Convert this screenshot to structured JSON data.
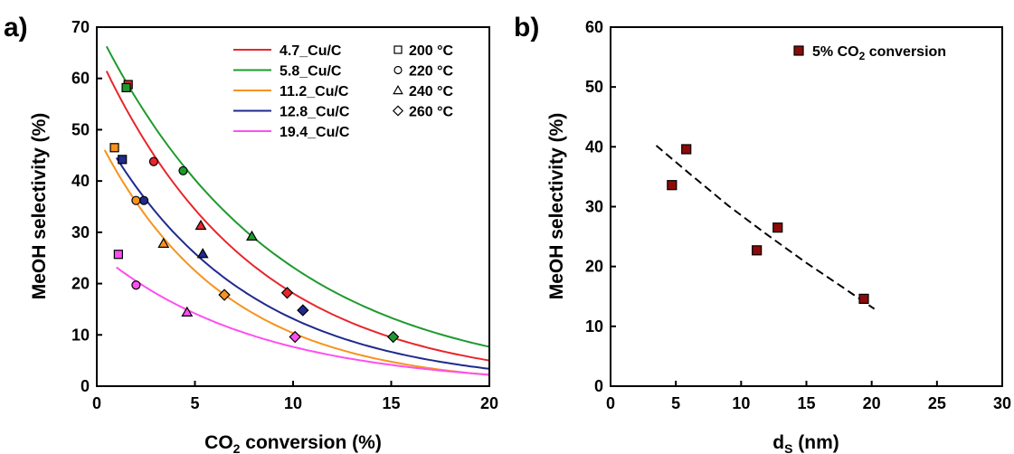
{
  "chart_data": [
    {
      "panel_label": "a)",
      "type": "scatter",
      "xlabel_main": "CO",
      "xlabel_sub": "2",
      "xlabel_rest": " conversion (%)",
      "ylabel": "MeOH selectivity (%)",
      "xlim": [
        0,
        20
      ],
      "ylim": [
        0,
        70
      ],
      "xticks": [
        0,
        5,
        10,
        15,
        20
      ],
      "yticks": [
        0,
        10,
        20,
        30,
        40,
        50,
        60,
        70
      ],
      "legend_series_position": "top-center",
      "legend_temp_position": "top-right",
      "temperature_markers": [
        {
          "symbol": "square",
          "label": "200 °C"
        },
        {
          "symbol": "circle",
          "label": "220 °C"
        },
        {
          "symbol": "triangle",
          "label": "240 °C"
        },
        {
          "symbol": "diamond",
          "label": "260 °C"
        }
      ],
      "series": [
        {
          "name": "4.7_Cu/C",
          "color": "#e8262b",
          "points": [
            {
              "x": 1.6,
              "y": 58.8,
              "m": "square"
            },
            {
              "x": 2.9,
              "y": 43.8,
              "m": "circle"
            },
            {
              "x": 5.3,
              "y": 31.3,
              "m": "triangle"
            },
            {
              "x": 9.7,
              "y": 18.2,
              "m": "diamond"
            }
          ],
          "fit_x": [
            0.5,
            20
          ],
          "fit_a": 65.5,
          "fit_k": 0.1285
        },
        {
          "name": "5.8_Cu/C",
          "color": "#1f9a2e",
          "points": [
            {
              "x": 1.5,
              "y": 58.2,
              "m": "square"
            },
            {
              "x": 4.4,
              "y": 42.0,
              "m": "circle"
            },
            {
              "x": 7.9,
              "y": 29.2,
              "m": "triangle"
            },
            {
              "x": 15.1,
              "y": 9.6,
              "m": "diamond"
            }
          ],
          "fit_x": [
            0.5,
            20
          ],
          "fit_a": 70.0,
          "fit_k": 0.1105
        },
        {
          "name": "11.2_Cu/C",
          "color": "#f7931e",
          "points": [
            {
              "x": 0.9,
              "y": 46.5,
              "m": "square"
            },
            {
              "x": 2.0,
              "y": 36.2,
              "m": "circle"
            },
            {
              "x": 3.4,
              "y": 27.8,
              "m": "triangle"
            },
            {
              "x": 6.5,
              "y": 17.8,
              "m": "diamond"
            }
          ],
          "fit_x": [
            0.4,
            20
          ],
          "fit_a": 49.0,
          "fit_k": 0.1555
        },
        {
          "name": "12.8_Cu/C",
          "color": "#1f2a8c",
          "points": [
            {
              "x": 1.3,
              "y": 44.2,
              "m": "square"
            },
            {
              "x": 2.4,
              "y": 36.2,
              "m": "circle"
            },
            {
              "x": 5.4,
              "y": 25.8,
              "m": "triangle"
            },
            {
              "x": 10.5,
              "y": 14.8,
              "m": "diamond"
            }
          ],
          "fit_x": [
            1.0,
            20
          ],
          "fit_a": 51.0,
          "fit_k": 0.1356
        },
        {
          "name": "19.4_Cu/C",
          "color": "#ff4ff0",
          "points": [
            {
              "x": 1.1,
              "y": 25.7,
              "m": "square"
            },
            {
              "x": 2.0,
              "y": 19.7,
              "m": "circle"
            },
            {
              "x": 4.6,
              "y": 14.4,
              "m": "triangle"
            },
            {
              "x": 10.1,
              "y": 9.6,
              "m": "diamond"
            }
          ],
          "fit_x": [
            1.0,
            20
          ],
          "fit_a": 26.2,
          "fit_k": 0.1229
        }
      ]
    },
    {
      "panel_label": "b)",
      "type": "scatter",
      "xlabel_main": "d",
      "xlabel_sub": "S",
      "xlabel_rest": " (nm)",
      "ylabel": "MeOH selectivity (%)",
      "xlim": [
        0,
        30
      ],
      "ylim": [
        0,
        60
      ],
      "xticks": [
        0,
        5,
        10,
        15,
        20,
        25,
        30
      ],
      "yticks": [
        0,
        10,
        20,
        30,
        40,
        50,
        60
      ],
      "legend_position": "top-right",
      "legend_main": "5% CO",
      "legend_sub": "2",
      "legend_rest": " conversion",
      "marker_color": "#8b0a0a",
      "points": [
        {
          "x": 4.7,
          "y": 33.6
        },
        {
          "x": 5.8,
          "y": 39.6
        },
        {
          "x": 11.2,
          "y": 22.7
        },
        {
          "x": 12.8,
          "y": 26.5
        },
        {
          "x": 19.4,
          "y": 14.6
        }
      ],
      "trend": [
        {
          "x": 3.5,
          "y": 40.2
        },
        {
          "x": 6,
          "y": 35.6
        },
        {
          "x": 9,
          "y": 30.2
        },
        {
          "x": 12,
          "y": 25.3
        },
        {
          "x": 15,
          "y": 20.6
        },
        {
          "x": 18,
          "y": 16.2
        },
        {
          "x": 20.2,
          "y": 12.9
        }
      ]
    }
  ]
}
